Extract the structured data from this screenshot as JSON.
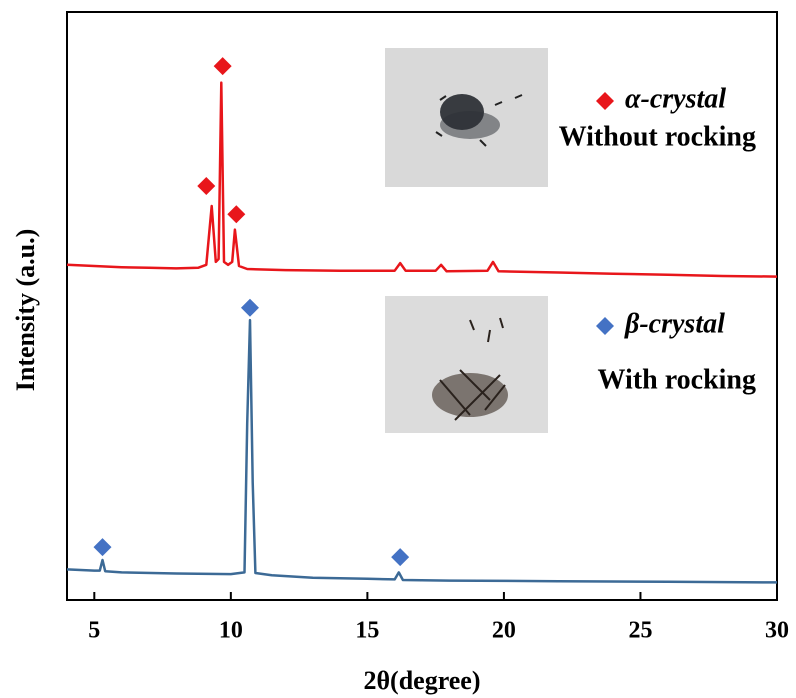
{
  "chart_data": {
    "type": "line",
    "x_label": "2θ(degree)",
    "y_label": "Intensity (a.u.)",
    "xlim": [
      4,
      30
    ],
    "xticks": [
      5,
      10,
      15,
      20,
      25,
      30
    ],
    "ylim": [
      0,
      100
    ],
    "series": [
      {
        "name": "α-crystal",
        "note": "Without rocking",
        "color": "#e8161b",
        "x": [
          4,
          5,
          6,
          7,
          8,
          8.8,
          9.1,
          9.3,
          9.45,
          9.55,
          9.65,
          9.75,
          9.9,
          10.05,
          10.15,
          10.3,
          10.6,
          12,
          14,
          16,
          16.2,
          16.4,
          17.5,
          17.7,
          17.9,
          19.4,
          19.6,
          19.8,
          22,
          24,
          26,
          28,
          30
        ],
        "values": [
          57,
          56.8,
          56.6,
          56.5,
          56.4,
          56.5,
          57,
          67,
          57.5,
          58,
          88,
          57.5,
          57,
          57.5,
          63,
          56.8,
          56.3,
          56.1,
          56,
          56,
          57.3,
          56,
          56,
          57,
          55.9,
          56,
          57.5,
          55.9,
          55.7,
          55.5,
          55.3,
          55.1,
          55
        ],
        "peaks_x": [
          9.1,
          9.7,
          10.2
        ],
        "peaks_y": [
          70.4,
          90.8,
          65.6
        ]
      },
      {
        "name": "β-crystal",
        "note": "With rocking",
        "color": "#3c6a96",
        "marker_color": "#4472c4",
        "x": [
          4,
          5,
          5.2,
          5.3,
          5.4,
          6,
          8,
          10,
          10.5,
          10.6,
          10.7,
          10.8,
          10.9,
          11.5,
          13,
          15,
          16,
          16.15,
          16.3,
          18,
          22,
          26,
          30
        ],
        "values": [
          5.2,
          5,
          5,
          6.8,
          4.9,
          4.7,
          4.5,
          4.4,
          4.7,
          30,
          47.6,
          20,
          4.6,
          4.2,
          3.8,
          3.6,
          3.5,
          4.7,
          3.4,
          3.3,
          3.2,
          3.1,
          3
        ],
        "peaks_x": [
          5.3,
          10.7,
          16.2
        ],
        "peaks_y": [
          9,
          49.7,
          7.3
        ]
      }
    ]
  }
}
